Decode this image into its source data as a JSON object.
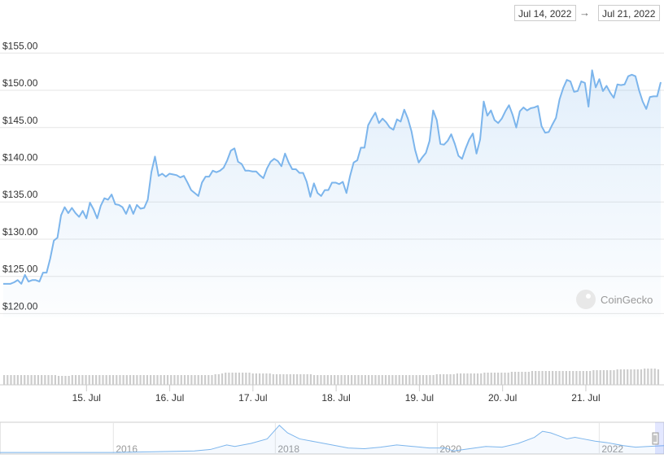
{
  "range_selector": {
    "start": "Jul 14, 2022",
    "arrow": "→",
    "end": "Jul 21, 2022"
  },
  "watermark": {
    "text": "CoinGecko",
    "icon": "gecko-logo-icon"
  },
  "colors": {
    "line": "#7cb5ec",
    "volume": "#cccccc",
    "grid": "#e6e6e6",
    "navigator_line": "#7cb5ec"
  },
  "chart_data": [
    {
      "type": "line",
      "title": "",
      "xlabel": "",
      "ylabel": "",
      "x_start": "Jul 14, 2022",
      "x_end": "Jul 21, 2022",
      "x_range_days": [
        0,
        7.9
      ],
      "ylim": [
        119.5,
        157
      ],
      "y_ticks": [
        120,
        125,
        130,
        135,
        140,
        145,
        150,
        155
      ],
      "y_tick_labels": [
        "$120.00",
        "$125.00",
        "$130.00",
        "$135.00",
        "$140.00",
        "$145.00",
        "$150.00",
        "$155.00"
      ],
      "x_tick_labels": [
        "15. Jul",
        "16. Jul",
        "17. Jul",
        "18. Jul",
        "19. Jul",
        "20. Jul",
        "21. Jul"
      ],
      "grid": true,
      "series": [
        {
          "sample_interval": "1 hour",
          "values": [
            124.0,
            124.0,
            124.0,
            124.2,
            124.5,
            124.0,
            125.2,
            124.3,
            124.5,
            124.5,
            124.3,
            125.5,
            125.5,
            127.4,
            129.8,
            130.2,
            133.2,
            134.3,
            133.5,
            134.2,
            133.5,
            133.0,
            133.8,
            132.8,
            134.9,
            134.0,
            132.8,
            134.5,
            135.5,
            135.3,
            136.0,
            134.7,
            134.6,
            134.3,
            133.4,
            134.6,
            133.4,
            134.6,
            134.1,
            134.2,
            135.3,
            139.0,
            141.1,
            138.5,
            138.8,
            138.4,
            138.8,
            138.7,
            138.6,
            138.3,
            138.5,
            137.6,
            136.6,
            136.2,
            135.8,
            137.6,
            138.4,
            138.4,
            139.2,
            139.0,
            139.2,
            139.6,
            140.6,
            141.9,
            142.2,
            140.4,
            140.1,
            139.2,
            139.2,
            139.1,
            139.1,
            138.6,
            138.2,
            139.5,
            140.4,
            140.8,
            140.5,
            139.8,
            141.5,
            140.3,
            139.4,
            139.4,
            138.9,
            138.9,
            137.7,
            135.7,
            137.5,
            136.2,
            135.8,
            136.6,
            136.6,
            137.6,
            137.6,
            137.4,
            137.7,
            136.2,
            138.5,
            140.3,
            140.6,
            142.3,
            142.3,
            145.3,
            146.2,
            147.0,
            145.6,
            146.2,
            145.7,
            145.0,
            144.7,
            146.1,
            145.8,
            147.4,
            146.2,
            144.5,
            142.0,
            140.3,
            141.0,
            141.6,
            143.2,
            147.3,
            146.0,
            142.8,
            142.7,
            143.2,
            144.1,
            142.8,
            141.2,
            140.8,
            142.2,
            143.4,
            144.2,
            141.5,
            143.4,
            148.5,
            146.6,
            147.3,
            146.0,
            145.6,
            146.2,
            147.2,
            148.0,
            146.7,
            145.0,
            147.2,
            147.7,
            147.3,
            147.6,
            147.7,
            147.9,
            145.2,
            144.3,
            144.4,
            145.4,
            146.3,
            148.8,
            150.3,
            151.4,
            151.2,
            149.8,
            149.9,
            151.2,
            151.0,
            147.8,
            152.7,
            150.4,
            151.5,
            149.9,
            150.6,
            149.7,
            149.0,
            150.8,
            150.7,
            150.8,
            151.9,
            152.1,
            151.9,
            150.0,
            148.5,
            147.5,
            149.1,
            149.2,
            149.2,
            151.1
          ]
        }
      ]
    },
    {
      "type": "bar",
      "title": "",
      "description_units": "relative volume",
      "ylim": [
        0,
        60
      ],
      "values": [
        12,
        12,
        12,
        12,
        12,
        12,
        12,
        12,
        12,
        12,
        12,
        12,
        12,
        12,
        12,
        12,
        11,
        11,
        11,
        11,
        12,
        12,
        12,
        12,
        12,
        12,
        12,
        12,
        12,
        12,
        12,
        12,
        12,
        12,
        12,
        12,
        12,
        12,
        12,
        12,
        12,
        12,
        12,
        12,
        12,
        12,
        12,
        12,
        12,
        12,
        12,
        12,
        12,
        12,
        12,
        12,
        12,
        12,
        12,
        12,
        12,
        12,
        13,
        13,
        14,
        15,
        15,
        15,
        15,
        15,
        15,
        15,
        15,
        14,
        14,
        14,
        14,
        14,
        14,
        13,
        13,
        13,
        13,
        13,
        13,
        13,
        13,
        13,
        13,
        13,
        13,
        12,
        12,
        12,
        12,
        12,
        12,
        12,
        12,
        12,
        12,
        12,
        12,
        12,
        12,
        12,
        12,
        12,
        12,
        12,
        12,
        12,
        12,
        12,
        12,
        12,
        12,
        12,
        12,
        12,
        12,
        12,
        12,
        12,
        12,
        12,
        12,
        13,
        13,
        13,
        13,
        13,
        13,
        14,
        14,
        14,
        14,
        14,
        14,
        14,
        14,
        15,
        15,
        15,
        15,
        15,
        15,
        15,
        15,
        16,
        16,
        16,
        16,
        16,
        16,
        17,
        17,
        17,
        17,
        17,
        17,
        17,
        17,
        17,
        17,
        17,
        17,
        17,
        17,
        17,
        17,
        17,
        17,
        18,
        18,
        18,
        18,
        18,
        18,
        18,
        19,
        19,
        19,
        19,
        19,
        19,
        19,
        19,
        20,
        20,
        20,
        20,
        19
      ]
    },
    {
      "type": "line",
      "title": "navigator",
      "x_tick_labels": [
        "2016",
        "2018",
        "2020",
        "2022"
      ],
      "x_range_years": [
        2014.6,
        2022.8
      ],
      "selection": {
        "start": "Jul 14, 2022",
        "end": "Jul 21, 2022"
      },
      "series": [
        {
          "points": [
            [
              2014.6,
              2
            ],
            [
              2015.0,
              2
            ],
            [
              2015.5,
              2
            ],
            [
              2016.0,
              2
            ],
            [
              2016.5,
              3
            ],
            [
              2017.0,
              4
            ],
            [
              2017.2,
              6
            ],
            [
              2017.4,
              12
            ],
            [
              2017.5,
              10
            ],
            [
              2017.7,
              14
            ],
            [
              2017.9,
              20
            ],
            [
              2018.0,
              32
            ],
            [
              2018.05,
              38
            ],
            [
              2018.15,
              28
            ],
            [
              2018.3,
              20
            ],
            [
              2018.5,
              16
            ],
            [
              2018.7,
              12
            ],
            [
              2018.9,
              8
            ],
            [
              2019.1,
              7
            ],
            [
              2019.3,
              9
            ],
            [
              2019.5,
              12
            ],
            [
              2019.7,
              10
            ],
            [
              2019.9,
              8
            ],
            [
              2020.1,
              8
            ],
            [
              2020.2,
              4
            ],
            [
              2020.4,
              7
            ],
            [
              2020.6,
              10
            ],
            [
              2020.8,
              9
            ],
            [
              2021.0,
              14
            ],
            [
              2021.2,
              22
            ],
            [
              2021.3,
              30
            ],
            [
              2021.4,
              28
            ],
            [
              2021.5,
              24
            ],
            [
              2021.6,
              20
            ],
            [
              2021.7,
              22
            ],
            [
              2021.8,
              20
            ],
            [
              2021.95,
              17
            ],
            [
              2022.1,
              15
            ],
            [
              2022.3,
              11
            ],
            [
              2022.45,
              9
            ],
            [
              2022.6,
              10
            ],
            [
              2022.8,
              11
            ]
          ]
        }
      ]
    }
  ]
}
